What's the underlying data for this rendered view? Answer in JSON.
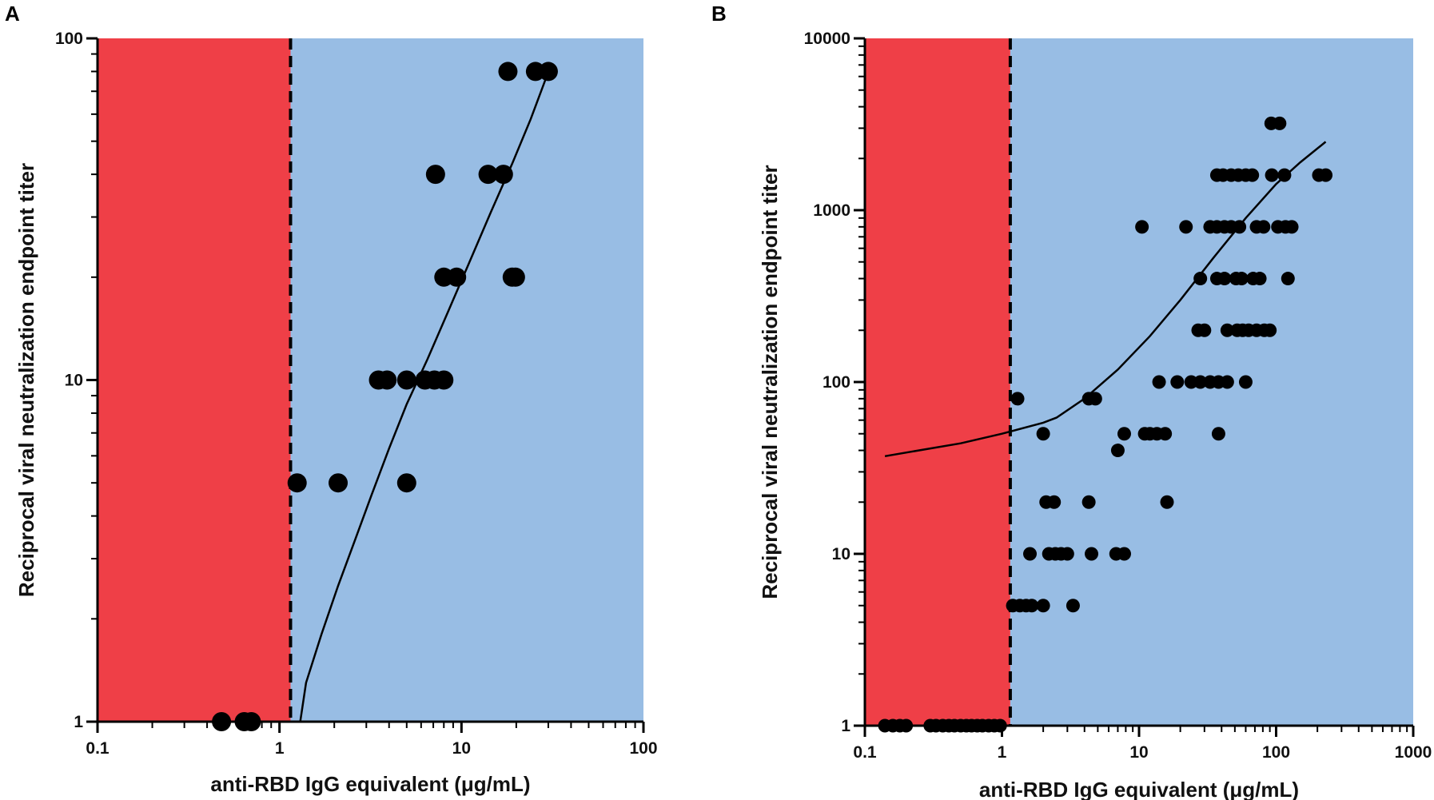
{
  "chart_data": [
    {
      "panel": "A",
      "type": "scatter",
      "xscale": "log",
      "yscale": "log",
      "xlim": [
        0.1,
        100
      ],
      "ylim": [
        1,
        100
      ],
      "xticks": [
        "0.1",
        "1",
        "10",
        "100"
      ],
      "yticks": [
        "1",
        "10",
        "100"
      ],
      "xlabel": "anti-RBD IgG equivalent (μg/mL)",
      "ylabel": "Reciprocal viral neutralization endpoint titer",
      "cutoff_x": 1.15,
      "region_colors": {
        "below_cutoff": "#ef3f47",
        "above_cutoff": "#98bde4"
      },
      "marker_color": "#000000",
      "points": [
        {
          "x": 0.48,
          "y": 1
        },
        {
          "x": 0.64,
          "y": 1
        },
        {
          "x": 0.7,
          "y": 1
        },
        {
          "x": 1.25,
          "y": 5
        },
        {
          "x": 2.1,
          "y": 5
        },
        {
          "x": 5.0,
          "y": 5
        },
        {
          "x": 3.5,
          "y": 10
        },
        {
          "x": 3.9,
          "y": 10
        },
        {
          "x": 5.0,
          "y": 10
        },
        {
          "x": 6.3,
          "y": 10
        },
        {
          "x": 7.1,
          "y": 10
        },
        {
          "x": 8.0,
          "y": 10
        },
        {
          "x": 8.0,
          "y": 20
        },
        {
          "x": 9.4,
          "y": 20
        },
        {
          "x": 19.0,
          "y": 20
        },
        {
          "x": 19.8,
          "y": 20
        },
        {
          "x": 7.2,
          "y": 40
        },
        {
          "x": 14.0,
          "y": 40
        },
        {
          "x": 17.0,
          "y": 40
        },
        {
          "x": 18.0,
          "y": 80
        },
        {
          "x": 25.5,
          "y": 80
        },
        {
          "x": 30.0,
          "y": 80
        }
      ],
      "fit_line": {
        "x": [
          1.3,
          1.4,
          1.7,
          2.1,
          2.6,
          3.2,
          4.0,
          5.0,
          6.5,
          8.5,
          11.0,
          14.5,
          19.0,
          24.0,
          29.0
        ],
        "y": [
          1,
          1.3,
          1.8,
          2.5,
          3.4,
          4.6,
          6.3,
          8.5,
          11.5,
          16.0,
          22.0,
          31.0,
          43.0,
          58.0,
          76.0
        ]
      }
    },
    {
      "panel": "B",
      "type": "scatter",
      "xscale": "log",
      "yscale": "log",
      "xlim": [
        0.1,
        1000
      ],
      "ylim": [
        1,
        10000
      ],
      "xticks": [
        "0.1",
        "1",
        "10",
        "100",
        "1000"
      ],
      "yticks": [
        "1",
        "10",
        "100",
        "1000",
        "10000"
      ],
      "xlabel": "anti-RBD IgG equivalent (μg/mL)",
      "ylabel": "Reciprocal viral neutralization endpoint titer",
      "cutoff_x": 1.15,
      "region_colors": {
        "below_cutoff": "#ef3f47",
        "above_cutoff": "#98bde4"
      },
      "marker_color": "#000000",
      "points": [
        {
          "x": 0.14,
          "y": 1
        },
        {
          "x": 0.16,
          "y": 1
        },
        {
          "x": 0.18,
          "y": 1
        },
        {
          "x": 0.2,
          "y": 1
        },
        {
          "x": 0.3,
          "y": 1
        },
        {
          "x": 0.33,
          "y": 1
        },
        {
          "x": 0.37,
          "y": 1
        },
        {
          "x": 0.41,
          "y": 1
        },
        {
          "x": 0.45,
          "y": 1
        },
        {
          "x": 0.5,
          "y": 1
        },
        {
          "x": 0.55,
          "y": 1
        },
        {
          "x": 0.6,
          "y": 1
        },
        {
          "x": 0.66,
          "y": 1
        },
        {
          "x": 0.72,
          "y": 1
        },
        {
          "x": 0.8,
          "y": 1
        },
        {
          "x": 0.88,
          "y": 1
        },
        {
          "x": 0.97,
          "y": 1
        },
        {
          "x": 1.2,
          "y": 5
        },
        {
          "x": 1.35,
          "y": 5
        },
        {
          "x": 1.5,
          "y": 5
        },
        {
          "x": 1.65,
          "y": 5
        },
        {
          "x": 2.0,
          "y": 5
        },
        {
          "x": 3.3,
          "y": 5
        },
        {
          "x": 1.6,
          "y": 10
        },
        {
          "x": 2.2,
          "y": 10
        },
        {
          "x": 2.45,
          "y": 10
        },
        {
          "x": 2.7,
          "y": 10
        },
        {
          "x": 3.0,
          "y": 10
        },
        {
          "x": 4.5,
          "y": 10
        },
        {
          "x": 6.8,
          "y": 10
        },
        {
          "x": 7.8,
          "y": 10
        },
        {
          "x": 2.1,
          "y": 20
        },
        {
          "x": 2.4,
          "y": 20
        },
        {
          "x": 4.3,
          "y": 20
        },
        {
          "x": 16.0,
          "y": 20
        },
        {
          "x": 7.0,
          "y": 40
        },
        {
          "x": 2.0,
          "y": 50
        },
        {
          "x": 7.8,
          "y": 50
        },
        {
          "x": 11.0,
          "y": 50
        },
        {
          "x": 12.0,
          "y": 50
        },
        {
          "x": 13.5,
          "y": 50
        },
        {
          "x": 15.5,
          "y": 50
        },
        {
          "x": 38.0,
          "y": 50
        },
        {
          "x": 1.3,
          "y": 80
        },
        {
          "x": 4.3,
          "y": 80
        },
        {
          "x": 4.8,
          "y": 80
        },
        {
          "x": 14.0,
          "y": 100
        },
        {
          "x": 19.0,
          "y": 100
        },
        {
          "x": 24.0,
          "y": 100
        },
        {
          "x": 28.0,
          "y": 100
        },
        {
          "x": 33.0,
          "y": 100
        },
        {
          "x": 38.0,
          "y": 100
        },
        {
          "x": 44.0,
          "y": 100
        },
        {
          "x": 60.0,
          "y": 100
        },
        {
          "x": 27.0,
          "y": 200
        },
        {
          "x": 30.0,
          "y": 200
        },
        {
          "x": 44.0,
          "y": 200
        },
        {
          "x": 52.0,
          "y": 200
        },
        {
          "x": 57.0,
          "y": 200
        },
        {
          "x": 63.0,
          "y": 200
        },
        {
          "x": 72.0,
          "y": 200
        },
        {
          "x": 82.0,
          "y": 200
        },
        {
          "x": 90.0,
          "y": 200
        },
        {
          "x": 28.0,
          "y": 400
        },
        {
          "x": 37.0,
          "y": 400
        },
        {
          "x": 42.0,
          "y": 400
        },
        {
          "x": 51.0,
          "y": 400
        },
        {
          "x": 56.0,
          "y": 400
        },
        {
          "x": 68.0,
          "y": 400
        },
        {
          "x": 76.0,
          "y": 400
        },
        {
          "x": 122.0,
          "y": 400
        },
        {
          "x": 10.5,
          "y": 800
        },
        {
          "x": 22.0,
          "y": 800
        },
        {
          "x": 33.0,
          "y": 800
        },
        {
          "x": 37.0,
          "y": 800
        },
        {
          "x": 42.0,
          "y": 800
        },
        {
          "x": 47.0,
          "y": 800
        },
        {
          "x": 54.0,
          "y": 800
        },
        {
          "x": 72.0,
          "y": 800
        },
        {
          "x": 81.0,
          "y": 800
        },
        {
          "x": 103.0,
          "y": 800
        },
        {
          "x": 117.0,
          "y": 800
        },
        {
          "x": 130.0,
          "y": 800
        },
        {
          "x": 37.0,
          "y": 1600
        },
        {
          "x": 41.0,
          "y": 1600
        },
        {
          "x": 47.0,
          "y": 1600
        },
        {
          "x": 53.0,
          "y": 1600
        },
        {
          "x": 60.0,
          "y": 1600
        },
        {
          "x": 67.0,
          "y": 1600
        },
        {
          "x": 93.0,
          "y": 1600
        },
        {
          "x": 115.0,
          "y": 1600
        },
        {
          "x": 205.0,
          "y": 1600
        },
        {
          "x": 230.0,
          "y": 1600
        },
        {
          "x": 92.0,
          "y": 3200
        },
        {
          "x": 106.0,
          "y": 3200
        }
      ],
      "fit_line": {
        "x": [
          0.14,
          0.5,
          1.0,
          2.0,
          2.5,
          4.0,
          7.0,
          12.0,
          20.0,
          35.0,
          60.0,
          100.0,
          150.0,
          230.0
        ],
        "y": [
          37,
          44,
          50,
          58,
          62,
          80,
          118,
          185,
          300,
          530,
          900,
          1420,
          1900,
          2500
        ]
      }
    }
  ],
  "panel_labels": [
    "A",
    "B"
  ]
}
